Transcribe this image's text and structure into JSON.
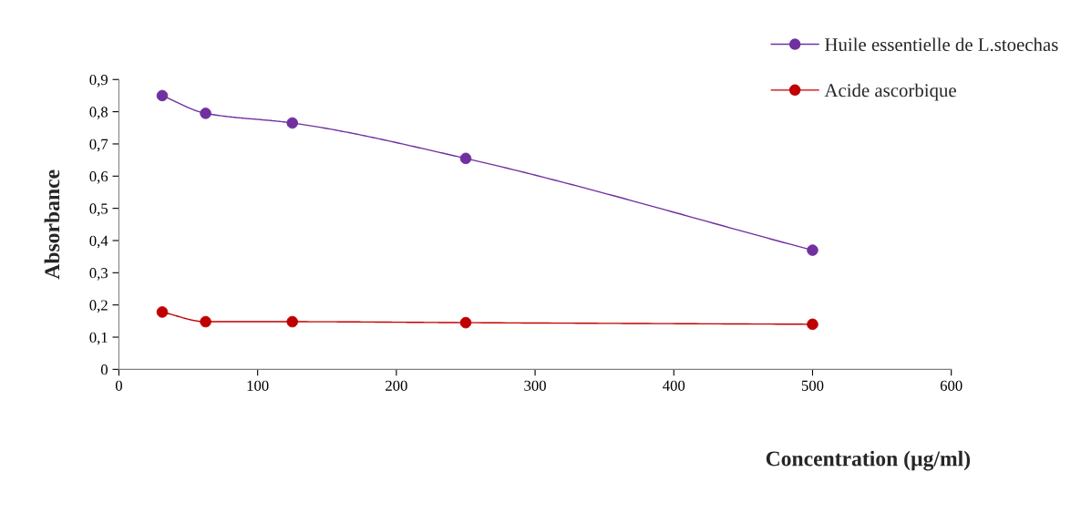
{
  "chart_data": {
    "type": "line",
    "xlabel": "Concentration (µg/ml)",
    "ylabel": "Absorbance",
    "x": [
      31.25,
      62.5,
      125,
      250,
      500
    ],
    "series": [
      {
        "name": "Huile essentielle de L.stoechas",
        "color": "#7030a0",
        "values": [
          0.85,
          0.795,
          0.765,
          0.655,
          0.37
        ]
      },
      {
        "name": "Acide ascorbique",
        "color": "#c00000",
        "values": [
          0.178,
          0.148,
          0.148,
          0.145,
          0.14
        ]
      }
    ],
    "xlim": [
      0,
      600
    ],
    "xticks": [
      0,
      100,
      200,
      300,
      400,
      500,
      600
    ],
    "ylim": [
      0,
      0.9
    ],
    "yticks": [
      0,
      {
        "value": 0.1,
        "label": "0,1"
      },
      {
        "value": 0.2,
        "label": "0,2"
      },
      {
        "value": 0.3,
        "label": "0,3"
      },
      {
        "value": 0.4,
        "label": "0,4"
      },
      {
        "value": 0.5,
        "label": "0,5"
      },
      {
        "value": 0.6,
        "label": "0,6"
      },
      {
        "value": 0.7,
        "label": "0,7"
      },
      {
        "value": 0.8,
        "label": "0,8"
      },
      {
        "value": 0.9,
        "label": "0,9"
      }
    ],
    "grid": false,
    "legend": "top right",
    "marker": "circle",
    "line_style": "solid"
  }
}
